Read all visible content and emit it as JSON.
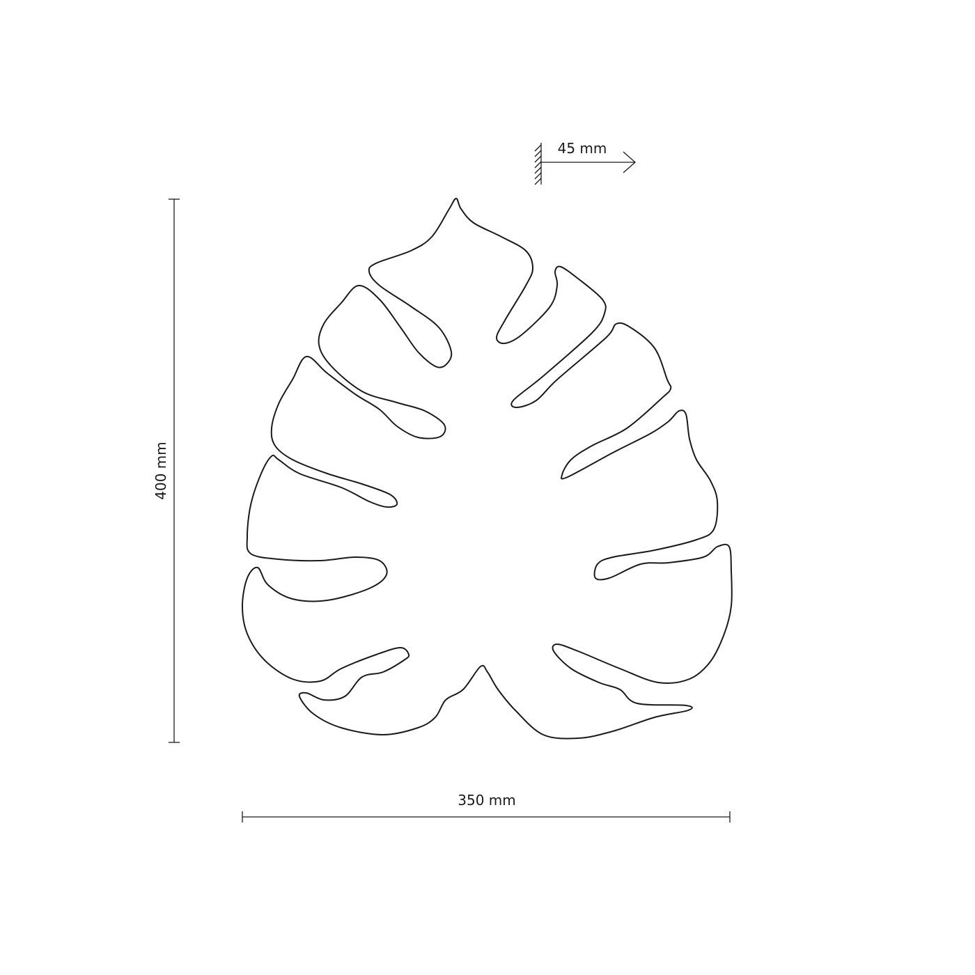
{
  "dimensions": {
    "depth_label": "45 mm",
    "height_label": "400 mm",
    "width_label": "350 mm"
  },
  "colors": {
    "line": "#1a1a1a",
    "background": "#ffffff"
  },
  "icons": {
    "wall": "wall-hatch-icon",
    "depth_arrow": "arrow-right-icon"
  }
}
